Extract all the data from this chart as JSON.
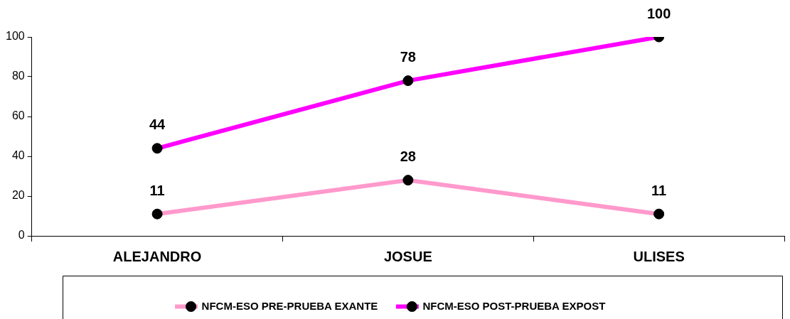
{
  "chart_data": {
    "type": "line",
    "categories": [
      "ALEJANDRO",
      "JOSUE",
      "ULISES"
    ],
    "series": [
      {
        "name": "NFCM-ESO PRE-PRUEBA EXANTE",
        "color": "#ff99cc",
        "values": [
          11,
          28,
          11
        ]
      },
      {
        "name": "NFCM-ESO POST-PRUEBA EXPOST",
        "color": "#ff00ff",
        "values": [
          44,
          78,
          100
        ]
      }
    ],
    "ylim": [
      0,
      100
    ],
    "yticks": [
      0,
      20,
      40,
      60,
      80,
      100
    ],
    "grid": false,
    "legend": "bottom",
    "marker": "circle",
    "data_labels": true
  }
}
